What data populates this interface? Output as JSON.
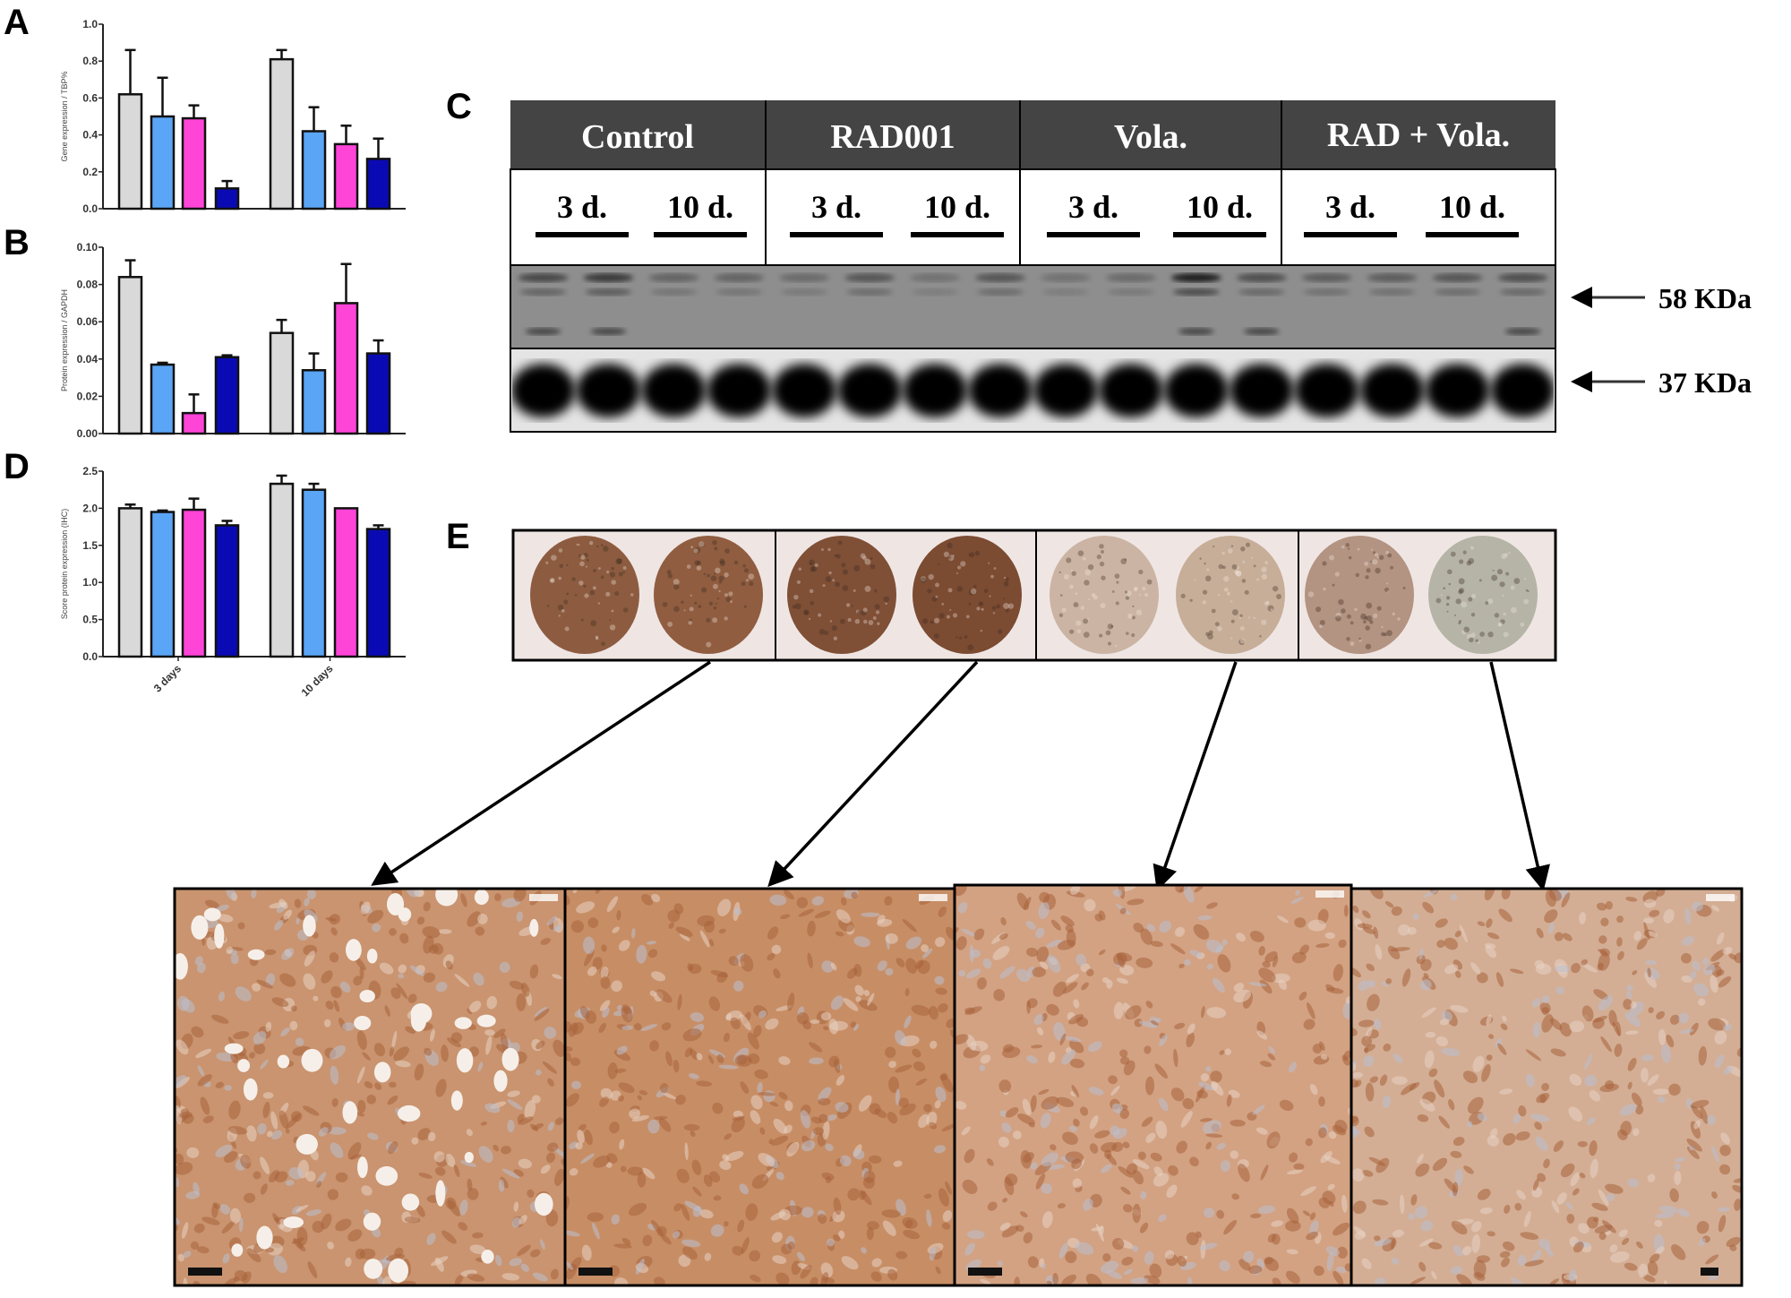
{
  "panel_letters": {
    "a": "A",
    "b": "B",
    "c": "C",
    "d": "D",
    "e": "E"
  },
  "colors": {
    "control": "#d9d9d9",
    "rad001": "#5aa5f5",
    "vola": "#ff44d8",
    "rad_vola": "#0a0ab4",
    "blot_header": "#444444"
  },
  "chart_data": [
    {
      "id": "A",
      "type": "bar",
      "ylabel": "Gene expression / TBP%",
      "ylim": [
        0,
        1.0
      ],
      "yticks": [
        "0.0",
        "0.2",
        "0.4",
        "0.6",
        "0.8",
        "1.0"
      ],
      "categories": [
        "3 days",
        "10 days"
      ],
      "show_xticklabels": false,
      "series": [
        {
          "values": [
            0.62,
            0.81
          ],
          "errors": [
            0.24,
            0.05
          ]
        },
        {
          "values": [
            0.5,
            0.42
          ],
          "errors": [
            0.21,
            0.13
          ]
        },
        {
          "values": [
            0.49,
            0.35
          ],
          "errors": [
            0.07,
            0.1
          ]
        },
        {
          "values": [
            0.11,
            0.27
          ],
          "errors": [
            0.04,
            0.11
          ]
        }
      ]
    },
    {
      "id": "B",
      "type": "bar",
      "ylabel": "Protein expression / GAPDH",
      "ylim": [
        0,
        0.1
      ],
      "yticks": [
        "0.00",
        "0.02",
        "0.04",
        "0.06",
        "0.08",
        "0.10"
      ],
      "categories": [
        "3 days",
        "10 days"
      ],
      "show_xticklabels": false,
      "series": [
        {
          "values": [
            0.084,
            0.054
          ],
          "errors": [
            0.009,
            0.007
          ]
        },
        {
          "values": [
            0.037,
            0.034
          ],
          "errors": [
            0.001,
            0.009
          ]
        },
        {
          "values": [
            0.011,
            0.07
          ],
          "errors": [
            0.01,
            0.021
          ]
        },
        {
          "values": [
            0.041,
            0.043
          ],
          "errors": [
            0.001,
            0.007
          ]
        }
      ]
    },
    {
      "id": "D",
      "type": "bar",
      "ylabel": "Score protein expression (IHC)",
      "ylim": [
        0,
        2.5
      ],
      "yticks": [
        "0.0",
        "0.5",
        "1.0",
        "1.5",
        "2.0",
        "2.5"
      ],
      "categories": [
        "3 days",
        "10 days"
      ],
      "show_xticklabels": true,
      "series": [
        {
          "values": [
            2.0,
            2.33
          ],
          "errors": [
            0.05,
            0.11
          ]
        },
        {
          "values": [
            1.95,
            2.25
          ],
          "errors": [
            0.02,
            0.08
          ]
        },
        {
          "values": [
            1.98,
            2.0
          ],
          "errors": [
            0.15,
            0.0
          ]
        },
        {
          "values": [
            1.77,
            1.72
          ],
          "errors": [
            0.06,
            0.05
          ]
        }
      ]
    }
  ],
  "blot": {
    "groups": [
      "Control",
      "RAD001",
      "Vola.",
      "RAD + Vola."
    ],
    "timepoints": [
      "3 d.",
      "10 d.",
      "3 d.",
      "10 d.",
      "3 d.",
      "10 d.",
      "3 d.",
      "10 d."
    ],
    "markers": [
      "58 KDa",
      "37 KDa"
    ],
    "band58_intensity": [
      0.5,
      0.6,
      0.3,
      0.3,
      0.25,
      0.4,
      0.2,
      0.4,
      0.2,
      0.25,
      0.8,
      0.45,
      0.35,
      0.35,
      0.4,
      0.45
    ]
  },
  "ihc": {
    "core_colors": [
      "#8d5c40",
      "#905d40",
      "#7f4f36",
      "#7b4b32",
      "#cbb4a3",
      "#c7ae98",
      "#b39382",
      "#b5b4a7"
    ],
    "zoom_tints": [
      "#c9946f",
      "#c78e66",
      "#d2a283",
      "#d3ae94"
    ]
  }
}
